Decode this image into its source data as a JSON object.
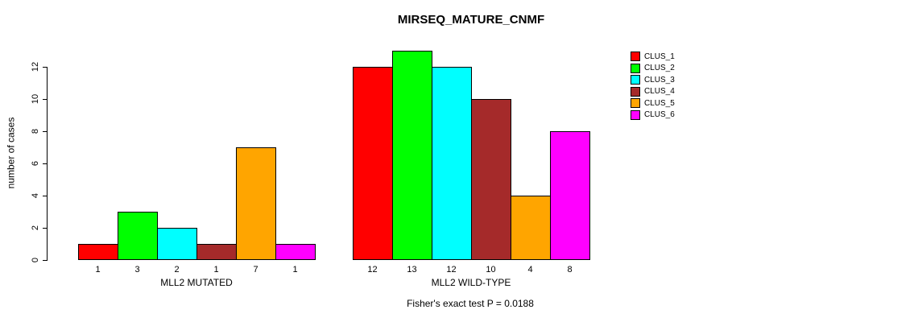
{
  "chart_data": {
    "type": "bar",
    "title": "MIRSEQ_MATURE_CNMF",
    "ylabel": "number of cases",
    "xlabel": "",
    "ylim": [
      0,
      13
    ],
    "yticks": [
      0,
      2,
      4,
      6,
      8,
      10,
      12
    ],
    "grid": false,
    "legend_position": "right",
    "categories": [
      "CLUS_1",
      "CLUS_2",
      "CLUS_3",
      "CLUS_4",
      "CLUS_5",
      "CLUS_6"
    ],
    "colors": [
      "#FF0000",
      "#00FF00",
      "#00FFFF",
      "#A52A2A",
      "#FFA500",
      "#FF00FF"
    ],
    "series": [
      {
        "name": "MLL2 MUTATED",
        "values": [
          1,
          3,
          2,
          1,
          7,
          1
        ]
      },
      {
        "name": "MLL2 WILD-TYPE",
        "values": [
          12,
          13,
          12,
          10,
          4,
          8
        ]
      }
    ],
    "bar_value_labels_shown": true,
    "footnote": "Fisher's exact test P = 0.0188",
    "text_color": "#000000",
    "background_color": "#FFFFFF"
  }
}
